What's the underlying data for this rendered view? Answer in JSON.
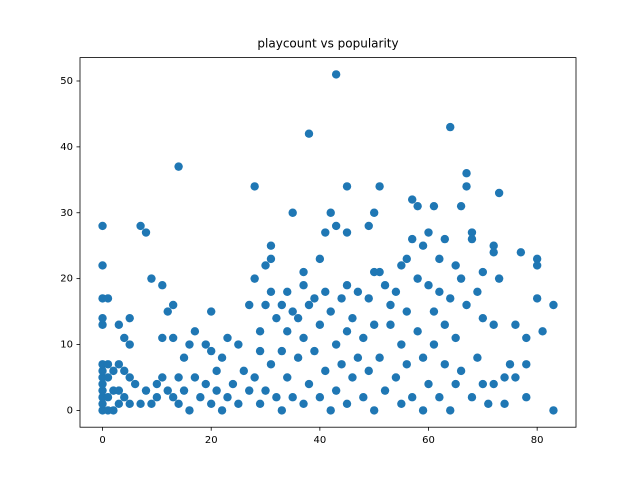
{
  "chart_data": {
    "type": "scatter",
    "title": "playcount vs popularity",
    "color": "#1f77b4",
    "x": [
      0,
      0,
      0,
      0,
      0,
      0,
      0,
      0,
      0,
      0,
      0,
      0,
      0,
      1,
      1,
      1,
      1,
      1,
      2,
      2,
      2,
      3,
      3,
      3,
      3,
      4,
      4,
      4,
      5,
      5,
      5,
      5,
      6,
      7,
      7,
      8,
      8,
      9,
      9,
      10,
      10,
      11,
      11,
      11,
      12,
      12,
      13,
      13,
      13,
      14,
      14,
      14,
      15,
      15,
      16,
      16,
      17,
      17,
      18,
      19,
      19,
      20,
      20,
      20,
      21,
      21,
      22,
      22,
      23,
      23,
      24,
      25,
      25,
      26,
      27,
      27,
      28,
      28,
      28,
      29,
      29,
      29,
      30,
      30,
      30,
      31,
      31,
      31,
      31,
      32,
      32,
      33,
      33,
      33,
      34,
      34,
      34,
      35,
      35,
      35,
      36,
      36,
      37,
      37,
      37,
      37,
      38,
      38,
      38,
      39,
      39,
      40,
      40,
      40,
      41,
      41,
      41,
      42,
      42,
      42,
      43,
      43,
      43,
      43,
      44,
      44,
      45,
      45,
      45,
      45,
      45,
      46,
      46,
      47,
      47,
      48,
      48,
      49,
      49,
      49,
      50,
      50,
      50,
      50,
      51,
      51,
      51,
      52,
      52,
      53,
      53,
      54,
      54,
      55,
      55,
      55,
      56,
      56,
      56,
      57,
      57,
      57,
      58,
      58,
      58,
      59,
      59,
      59,
      60,
      60,
      60,
      61,
      61,
      61,
      62,
      62,
      62,
      63,
      63,
      63,
      64,
      64,
      64,
      65,
      65,
      65,
      66,
      66,
      66,
      67,
      67,
      67,
      68,
      68,
      68,
      69,
      69,
      70,
      70,
      70,
      71,
      72,
      72,
      72,
      72,
      73,
      73,
      74,
      74,
      75,
      76,
      76,
      77,
      78,
      78,
      78,
      80,
      80,
      80,
      81,
      83,
      83
    ],
    "y": [
      0,
      1,
      2,
      3,
      4,
      5,
      6,
      7,
      13,
      14,
      17,
      22,
      28,
      0,
      2,
      5,
      7,
      17,
      0,
      3,
      6,
      1,
      3,
      7,
      13,
      2,
      6,
      11,
      1,
      5,
      10,
      14,
      4,
      1,
      28,
      3,
      27,
      1,
      20,
      2,
      4,
      11,
      19,
      5,
      3,
      15,
      16,
      11,
      2,
      37,
      5,
      1,
      8,
      3,
      10,
      0,
      5,
      12,
      2,
      10,
      4,
      15,
      9,
      1,
      6,
      3,
      8,
      0,
      11,
      2,
      4,
      10,
      1,
      6,
      16,
      3,
      34,
      20,
      5,
      12,
      1,
      9,
      22,
      16,
      3,
      25,
      23,
      18,
      7,
      14,
      2,
      16,
      9,
      0,
      12,
      18,
      5,
      30,
      15,
      2,
      14,
      8,
      21,
      19,
      11,
      1,
      42,
      16,
      4,
      17,
      9,
      23,
      13,
      2,
      27,
      18,
      6,
      30,
      15,
      0,
      51,
      28,
      10,
      3,
      17,
      7,
      34,
      27,
      19,
      12,
      1,
      14,
      5,
      18,
      8,
      11,
      2,
      28,
      17,
      6,
      30,
      21,
      13,
      0,
      34,
      21,
      8,
      19,
      3,
      13,
      16,
      18,
      5,
      22,
      10,
      1,
      23,
      15,
      7,
      32,
      26,
      2,
      31,
      20,
      12,
      25,
      8,
      0,
      27,
      19,
      4,
      31,
      15,
      10,
      23,
      18,
      2,
      26,
      13,
      7,
      43,
      17,
      0,
      22,
      11,
      4,
      31,
      20,
      6,
      36,
      34,
      16,
      27,
      26,
      2,
      18,
      8,
      21,
      14,
      4,
      1,
      25,
      24,
      13,
      4,
      33,
      20,
      1,
      5,
      7,
      13,
      5,
      24,
      11,
      2,
      7,
      23,
      22,
      17,
      12,
      16,
      0
    ],
    "xlim": [
      -4.15,
      87.15
    ],
    "ylim": [
      -2.55,
      53.55
    ],
    "xticks": [
      0,
      20,
      40,
      60,
      80
    ],
    "yticks": [
      0,
      10,
      20,
      30,
      40,
      50
    ]
  }
}
